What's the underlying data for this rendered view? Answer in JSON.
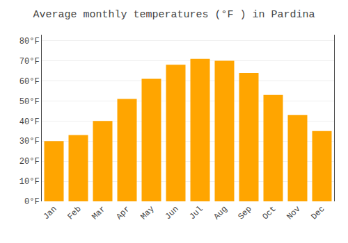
{
  "chart_data": {
    "type": "bar",
    "title": "Average monthly temperatures (°F ) in Pardina",
    "categories": [
      "Jan",
      "Feb",
      "Mar",
      "Apr",
      "May",
      "Jun",
      "Jul",
      "Aug",
      "Sep",
      "Oct",
      "Nov",
      "Dec"
    ],
    "values": [
      30,
      33,
      40,
      51,
      61,
      68,
      71,
      70,
      64,
      53,
      43,
      35
    ],
    "color": "#FFA500",
    "ylim": [
      0,
      83
    ],
    "yticks": [
      {
        "value": 0,
        "label": "0°F"
      },
      {
        "value": 10,
        "label": "10°F"
      },
      {
        "value": 20,
        "label": "20°F"
      },
      {
        "value": 30,
        "label": "30°F"
      },
      {
        "value": 40,
        "label": "40°F"
      },
      {
        "value": 50,
        "label": "50°F"
      },
      {
        "value": 60,
        "label": "60°F"
      },
      {
        "value": 70,
        "label": "70°F"
      },
      {
        "value": 80,
        "label": "80°F"
      }
    ],
    "grid": true
  }
}
